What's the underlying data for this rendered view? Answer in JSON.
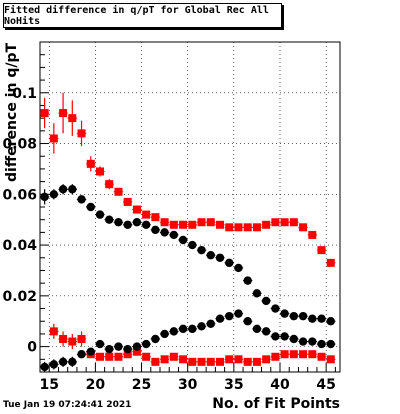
{
  "chart_data": {
    "type": "scatter",
    "title": "Fitted difference in q/pT for Global Rec All NoHits",
    "xlabel": "No. of Fit Points",
    "ylabel": "difference in q/pT",
    "xlim": [
      14,
      46.5
    ],
    "ylim": [
      -0.01,
      0.12
    ],
    "x_ticks": [
      15,
      20,
      25,
      30,
      35,
      40,
      45
    ],
    "y_ticks": [
      0,
      0.02,
      0.04,
      0.06,
      0.08,
      0.1
    ],
    "y_tick_labels": [
      "0",
      "0.02",
      "0.04",
      "0.06",
      "0.08",
      "0.1"
    ],
    "grid": "dotted",
    "series": [
      {
        "color": "#ff0000",
        "marker": "square",
        "x": [
          14.5,
          15.5,
          16.5,
          17.5,
          18.5,
          19.5,
          20.5,
          21.5,
          22.5,
          23.5,
          24.5,
          25.5,
          26.5,
          27.5,
          28.5,
          29.5,
          30.5,
          31.5,
          32.5,
          33.5,
          34.5,
          35.5,
          36.5,
          37.5,
          38.5,
          39.5,
          40.5,
          41.5,
          42.5,
          43.5,
          44.5,
          45.5
        ],
        "y": [
          0.092,
          0.082,
          0.092,
          0.09,
          0.084,
          0.072,
          0.069,
          0.064,
          0.061,
          0.057,
          0.054,
          0.052,
          0.051,
          0.049,
          0.048,
          0.048,
          0.048,
          0.049,
          0.049,
          0.048,
          0.047,
          0.047,
          0.047,
          0.047,
          0.048,
          0.049,
          0.049,
          0.049,
          0.047,
          0.044,
          0.038,
          0.033
        ],
        "err": [
          0.006,
          0.006,
          0.008,
          0.007,
          0.005,
          0.003,
          0.002,
          0.002,
          0.001,
          0.001,
          0.001,
          0.001,
          0.001,
          0.001,
          0.001,
          0.001,
          0.001,
          0.001,
          0.001,
          0.001,
          0.001,
          0.001,
          0.001,
          0.001,
          0.001,
          0.001,
          0.001,
          0.001,
          0.001,
          0.001,
          0.001,
          0.001
        ]
      },
      {
        "color": "#000000",
        "marker": "circle",
        "x": [
          14.5,
          15.5,
          16.5,
          17.5,
          18.5,
          19.5,
          20.5,
          21.5,
          22.5,
          23.5,
          24.5,
          25.5,
          26.5,
          27.5,
          28.5,
          29.5,
          30.5,
          31.5,
          32.5,
          33.5,
          34.5,
          35.5,
          36.5,
          37.5,
          38.5,
          39.5,
          40.5,
          41.5,
          42.5,
          43.5,
          44.5,
          45.5
        ],
        "y": [
          0.059,
          0.06,
          0.062,
          0.062,
          0.058,
          0.055,
          0.052,
          0.05,
          0.049,
          0.048,
          0.049,
          0.048,
          0.046,
          0.045,
          0.044,
          0.042,
          0.04,
          0.038,
          0.036,
          0.035,
          0.033,
          0.031,
          0.026,
          0.021,
          0.018,
          0.015,
          0.013,
          0.012,
          0.012,
          0.011,
          0.011,
          0.01
        ],
        "err": [
          0.003,
          0.002,
          0.002,
          0.002,
          0.001,
          0.001,
          0.001,
          0.001,
          0.001,
          0.001,
          0.001,
          0.001,
          0.001,
          0.001,
          0.001,
          0.001,
          0.001,
          0.001,
          0.001,
          0.001,
          0.001,
          0.001,
          0.001,
          0.001,
          0.001,
          0.001,
          0.001,
          0.001,
          0.001,
          0.001,
          0.001,
          0.001
        ]
      },
      {
        "color": "#ff0000",
        "marker": "square",
        "x": [
          15.5,
          16.5,
          17.5,
          18.5,
          19.5,
          20.5,
          21.5,
          22.5,
          23.5,
          24.5,
          25.5,
          26.5,
          27.5,
          28.5,
          29.5,
          30.5,
          31.5,
          32.5,
          33.5,
          34.5,
          35.5,
          36.5,
          37.5,
          38.5,
          39.5,
          40.5,
          41.5,
          42.5,
          43.5,
          44.5,
          45.5
        ],
        "y": [
          0.006,
          0.003,
          0.002,
          0.003,
          -0.003,
          -0.004,
          -0.004,
          -0.004,
          -0.003,
          -0.002,
          -0.004,
          -0.006,
          -0.005,
          -0.004,
          -0.005,
          -0.006,
          -0.006,
          -0.006,
          -0.006,
          -0.005,
          -0.005,
          -0.006,
          -0.006,
          -0.005,
          -0.004,
          -0.003,
          -0.003,
          -0.003,
          -0.003,
          -0.004,
          -0.005
        ],
        "err": [
          0.003,
          0.003,
          0.003,
          0.003,
          0.001,
          0.001,
          0.001,
          0.001,
          0.001,
          0.001,
          0.001,
          0.001,
          0.001,
          0.001,
          0.001,
          0.001,
          0.001,
          0.001,
          0.001,
          0.001,
          0.001,
          0.001,
          0.001,
          0.001,
          0.001,
          0.001,
          0.001,
          0.001,
          0.001,
          0.001,
          0.001
        ]
      },
      {
        "color": "#000000",
        "marker": "circle",
        "x": [
          14.5,
          15.5,
          16.5,
          17.5,
          18.5,
          19.5,
          20.5,
          21.5,
          22.5,
          23.5,
          24.5,
          25.5,
          26.5,
          27.5,
          28.5,
          29.5,
          30.5,
          31.5,
          32.5,
          33.5,
          34.5,
          35.5,
          36.5,
          37.5,
          38.5,
          39.5,
          40.5,
          41.5,
          42.5,
          43.5,
          44.5,
          45.5
        ],
        "y": [
          -0.008,
          -0.007,
          -0.006,
          -0.006,
          -0.003,
          -0.002,
          0.001,
          -0.001,
          0.0,
          -0.001,
          0.0,
          0.001,
          0.003,
          0.005,
          0.006,
          0.007,
          0.007,
          0.008,
          0.009,
          0.011,
          0.012,
          0.013,
          0.01,
          0.007,
          0.006,
          0.004,
          0.004,
          0.003,
          0.002,
          0.002,
          0.001,
          0.001
        ],
        "err": [
          0.002,
          0.002,
          0.002,
          0.002,
          0.001,
          0.001,
          0.001,
          0.001,
          0.001,
          0.001,
          0.001,
          0.001,
          0.001,
          0.001,
          0.001,
          0.001,
          0.001,
          0.001,
          0.001,
          0.001,
          0.001,
          0.001,
          0.001,
          0.001,
          0.001,
          0.001,
          0.001,
          0.001,
          0.001,
          0.001,
          0.001,
          0.001
        ]
      }
    ]
  },
  "footer": {
    "timestamp": "Tue Jan 19 07:24:41 2021"
  }
}
